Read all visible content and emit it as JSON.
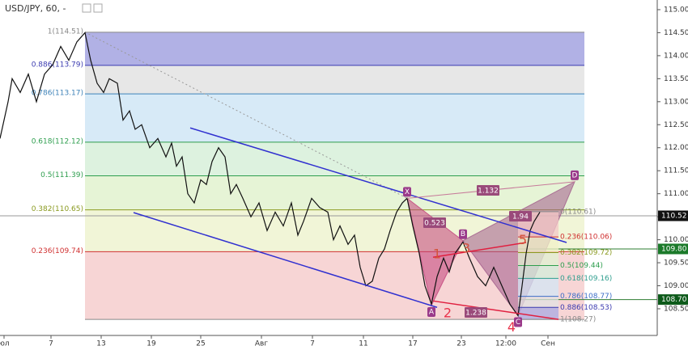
{
  "chart_data": {
    "type": "line",
    "title": "USD/JPY, 60, -",
    "xlim": [
      0,
      406
    ],
    "ylim": [
      107.92,
      115.21
    ],
    "xticks": [
      {
        "value": 2.5,
        "label": "юл"
      },
      {
        "value": 31.5,
        "label": "7"
      },
      {
        "value": 62.5,
        "label": "13"
      },
      {
        "value": 93.5,
        "label": "19"
      },
      {
        "value": 124,
        "label": "25"
      },
      {
        "value": 161.5,
        "label": "Авг"
      },
      {
        "value": 193,
        "label": "7"
      },
      {
        "value": 224.5,
        "label": "11"
      },
      {
        "value": 255,
        "label": "17"
      },
      {
        "value": 285,
        "label": "23"
      },
      {
        "value": 312.5,
        "label": "12:00"
      },
      {
        "value": 338.5,
        "label": "Сен"
      }
    ],
    "yticks": [
      {
        "value": 115,
        "label": "115.00"
      },
      {
        "value": 114.5,
        "label": "114.50"
      },
      {
        "value": 114,
        "label": "114.00"
      },
      {
        "value": 113.5,
        "label": "113.50"
      },
      {
        "value": 113,
        "label": "113.00"
      },
      {
        "value": 112.5,
        "label": "112.50"
      },
      {
        "value": 112,
        "label": "112.00"
      },
      {
        "value": 111.5,
        "label": "111.50"
      },
      {
        "value": 111,
        "label": "111.00"
      },
      {
        "value": 110.5,
        "label": "110.50"
      },
      {
        "value": 110,
        "label": "110.00"
      },
      {
        "value": 109.5,
        "label": "109.50"
      },
      {
        "value": 109,
        "label": "109.00"
      },
      {
        "value": 108.5,
        "label": "108.50"
      }
    ],
    "series": [
      {
        "name": "USD/JPY",
        "color": "#111111",
        "x": [
          0,
          5,
          7.5,
          12.5,
          17.5,
          22.5,
          27.5,
          32.5,
          37.5,
          42.5,
          47.5,
          52.5,
          56,
          60,
          64,
          67.5,
          72.5,
          76,
          80,
          83.5,
          87.5,
          92.5,
          97.5,
          102.5,
          106,
          109,
          112.5,
          116,
          120,
          124,
          127.5,
          131,
          135,
          139,
          142.5,
          146,
          150,
          155,
          160,
          165,
          170,
          175,
          180,
          184,
          187.5,
          192.5,
          197.5,
          202.5,
          206,
          210,
          215,
          219,
          222.5,
          226,
          230,
          234,
          237.5,
          241,
          245,
          248.5,
          251.5,
          255,
          259,
          262.5,
          266.5,
          270,
          274,
          277.5,
          281,
          286,
          290,
          295,
          300,
          305,
          310,
          315,
          320,
          322.5,
          325,
          327.5,
          330,
          333.5
        ],
        "values": [
          112.2,
          113.0,
          113.5,
          113.2,
          113.6,
          113.0,
          113.6,
          113.8,
          114.2,
          113.9,
          114.3,
          114.5,
          113.9,
          113.4,
          113.2,
          113.5,
          113.4,
          112.6,
          112.8,
          112.4,
          112.5,
          112.0,
          112.2,
          111.8,
          112.1,
          111.6,
          111.8,
          111.0,
          110.8,
          111.3,
          111.2,
          111.7,
          112.0,
          111.8,
          111.0,
          111.2,
          110.9,
          110.5,
          110.8,
          110.2,
          110.6,
          110.3,
          110.8,
          110.1,
          110.4,
          110.9,
          110.7,
          110.6,
          110.0,
          110.3,
          109.9,
          110.1,
          109.4,
          109.0,
          109.1,
          109.6,
          109.8,
          110.2,
          110.6,
          110.8,
          110.9,
          110.3,
          109.7,
          109.0,
          108.6,
          109.2,
          109.6,
          109.3,
          109.7,
          109.95,
          109.6,
          109.2,
          109.0,
          109.4,
          109.0,
          108.6,
          108.35,
          109.0,
          109.7,
          110.2,
          110.4,
          110.6
        ]
      }
    ],
    "fib_left": {
      "x": [
        52.5,
        361
      ],
      "levels": [
        {
          "label": "1(114.51)",
          "value": 114.51,
          "color": "#888888",
          "fill": "#a9a9e2"
        },
        {
          "label": "0.886(113.79)",
          "value": 113.79,
          "color": "#3a3ab0",
          "fill": "#e4e4e4"
        },
        {
          "label": "0.786(113.17)",
          "value": 113.17,
          "color": "#3d82b8",
          "fill": "#d3e8f6"
        },
        {
          "label": "0.618(112.12)",
          "value": 112.12,
          "color": "#2e9e4e",
          "fill": "#d9f1dc"
        },
        {
          "label": "0.5(111.39)",
          "value": 111.39,
          "color": "#2e9e4e",
          "fill": "#e3f3d2"
        },
        {
          "label": "0.382(110.65)",
          "value": 110.65,
          "color": "#8a9a20",
          "fill": "#f0f4d3"
        },
        {
          "label": "0.236(109.74)",
          "value": 109.74,
          "color": "#d03030",
          "fill": "#f6d0d0"
        },
        {
          "value": 108.27,
          "color": "#888888"
        }
      ]
    },
    "fib_right": {
      "x": [
        320,
        345
      ],
      "levels": [
        {
          "label": "0(110.61)",
          "value": 110.61,
          "color": "#888888",
          "fill": "#f3c7c7"
        },
        {
          "label": "0.236(110.06)",
          "value": 110.06,
          "color": "#d03030",
          "fill": "#f0f0c8"
        },
        {
          "label": "0.382(109.72)",
          "value": 109.72,
          "color": "#8a9a20",
          "fill": "#e0f2d2"
        },
        {
          "label": "0.5(109.44)",
          "value": 109.44,
          "color": "#2e9e4e",
          "fill": "#d3eedb"
        },
        {
          "label": "0.618(109.16)",
          "value": 109.16,
          "color": "#2e9e8e",
          "fill": "#d3e6f4"
        },
        {
          "label": "0.786(108.77)",
          "value": 108.77,
          "color": "#3d6ec8",
          "fill": "#e2e2e2"
        },
        {
          "label": "0.886(108.53)",
          "value": 108.53,
          "color": "#3a3ab0",
          "fill": "#a9a9e2"
        },
        {
          "label": "1(108.27)",
          "value": 108.27,
          "color": "#888888"
        }
      ]
    },
    "pattern": {
      "labels": [
        "X",
        "A",
        "B",
        "C",
        "D"
      ],
      "x": [
        251.5,
        266.5,
        286,
        320,
        355
      ],
      "y": [
        110.9,
        108.57,
        109.98,
        108.35,
        111.26
      ],
      "ratios": [
        0.523,
        1.238,
        1.94,
        1.132
      ]
    },
    "waves": [
      {
        "label": "1",
        "x": 270,
        "y": 109.68
      },
      {
        "label": "2",
        "x": 276.5,
        "y": 108.39
      },
      {
        "label": "3",
        "x": 288,
        "y": 109.8
      },
      {
        "label": "4",
        "x": 316,
        "y": 108.09
      },
      {
        "label": "5",
        "x": 323,
        "y": 109.98
      }
    ],
    "lines": [
      {
        "color": "#3030d0",
        "x": [
          117.5,
          350
        ],
        "y": [
          112.43,
          109.94
        ]
      },
      {
        "color": "#3030d0",
        "x": [
          82.5,
          270
        ],
        "y": [
          110.59,
          108.53
        ]
      },
      {
        "color": "#e02040",
        "x": [
          267.5,
          325
        ],
        "y": [
          109.62,
          109.94
        ]
      },
      {
        "color": "#e02040",
        "x": [
          267.5,
          345
        ],
        "y": [
          108.67,
          108.27
        ]
      }
    ],
    "hlines": [
      {
        "value": 110.52,
        "color": "#999999",
        "from": 0
      },
      {
        "value": 109.8,
        "color": "#2e7d32",
        "from": 320
      },
      {
        "value": 108.7,
        "color": "#2e7d32",
        "from": 320
      }
    ],
    "price_labels": [
      {
        "value": 110.52,
        "label": "110.52",
        "color": "#111111"
      },
      {
        "value": 109.8,
        "label": "109.80",
        "color": "#1b7a2a"
      },
      {
        "value": 108.7,
        "label": "108.70",
        "color": "#0d5a1a"
      }
    ]
  }
}
